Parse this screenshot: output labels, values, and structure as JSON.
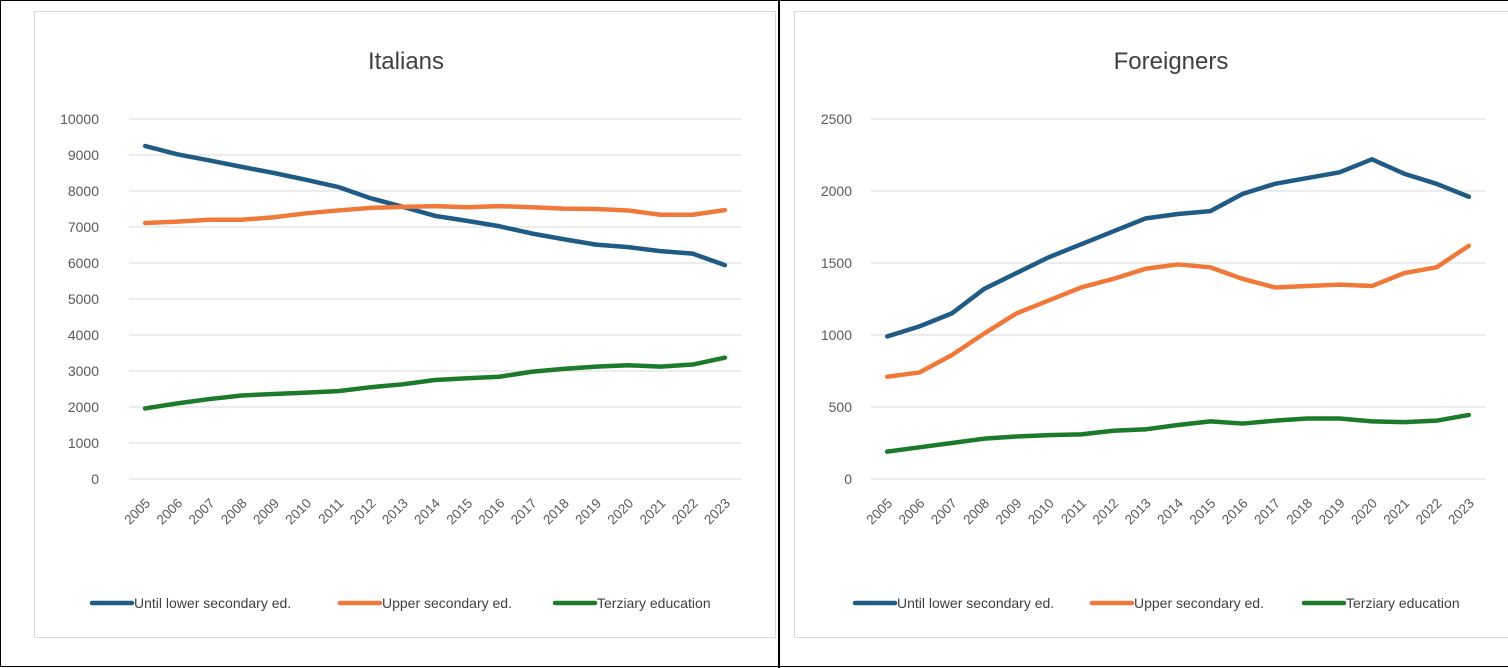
{
  "colors": {
    "until_lower": "#1f5b85",
    "upper": "#f0793a",
    "terziary": "#1c7a2b"
  },
  "chart_data": [
    {
      "type": "line",
      "title": "Italians",
      "xlabel": "",
      "ylabel": "",
      "x": [
        "2005",
        "2006",
        "2007",
        "2008",
        "2009",
        "2010",
        "2011",
        "2012",
        "2013",
        "2014",
        "2015",
        "2016",
        "2017",
        "2018",
        "2019",
        "2020",
        "2021",
        "2022",
        "2023"
      ],
      "ylim": [
        0,
        10000
      ],
      "yticks": [
        "0",
        "1000",
        "2000",
        "3000",
        "4000",
        "5000",
        "6000",
        "7000",
        "8000",
        "9000",
        "10000"
      ],
      "grid": true,
      "legend": "bottom",
      "series": [
        {
          "name": "Until lower secondary ed.",
          "color_key": "until_lower",
          "values": [
            9250,
            9020,
            8850,
            8670,
            8500,
            8310,
            8110,
            7800,
            7560,
            7310,
            7170,
            7020,
            6820,
            6660,
            6510,
            6440,
            6330,
            6260,
            5940
          ]
        },
        {
          "name": "Upper secondary ed.",
          "color_key": "upper",
          "values": [
            7110,
            7150,
            7200,
            7200,
            7270,
            7380,
            7460,
            7530,
            7560,
            7580,
            7550,
            7580,
            7550,
            7510,
            7500,
            7460,
            7340,
            7340,
            7470
          ]
        },
        {
          "name": "Terziary education",
          "color_key": "terziary",
          "values": [
            1960,
            2100,
            2220,
            2320,
            2360,
            2400,
            2440,
            2550,
            2630,
            2750,
            2800,
            2840,
            2980,
            3060,
            3120,
            3160,
            3120,
            3180,
            3370
          ]
        }
      ]
    },
    {
      "type": "line",
      "title": "Foreigners",
      "xlabel": "",
      "ylabel": "",
      "x": [
        "2005",
        "2006",
        "2007",
        "2008",
        "2009",
        "2010",
        "2011",
        "2012",
        "2013",
        "2014",
        "2015",
        "2016",
        "2017",
        "2018",
        "2019",
        "2020",
        "2021",
        "2022",
        "2023"
      ],
      "ylim": [
        0,
        2500
      ],
      "yticks": [
        "0",
        "500",
        "1000",
        "1500",
        "2000",
        "2500"
      ],
      "grid": true,
      "legend": "bottom",
      "series": [
        {
          "name": "Until lower secondary ed.",
          "color_key": "until_lower",
          "values": [
            990,
            1060,
            1150,
            1320,
            1430,
            1540,
            1630,
            1720,
            1810,
            1840,
            1860,
            1980,
            2050,
            2090,
            2130,
            2220,
            2120,
            2050,
            1960
          ]
        },
        {
          "name": "Upper secondary ed.",
          "color_key": "upper",
          "values": [
            710,
            740,
            860,
            1010,
            1150,
            1240,
            1330,
            1390,
            1460,
            1490,
            1470,
            1390,
            1330,
            1340,
            1350,
            1340,
            1430,
            1470,
            1620
          ]
        },
        {
          "name": "Terziary education",
          "color_key": "terziary",
          "values": [
            190,
            220,
            250,
            280,
            295,
            305,
            310,
            335,
            345,
            375,
            400,
            385,
            405,
            420,
            420,
            400,
            395,
            405,
            445
          ]
        }
      ]
    }
  ]
}
